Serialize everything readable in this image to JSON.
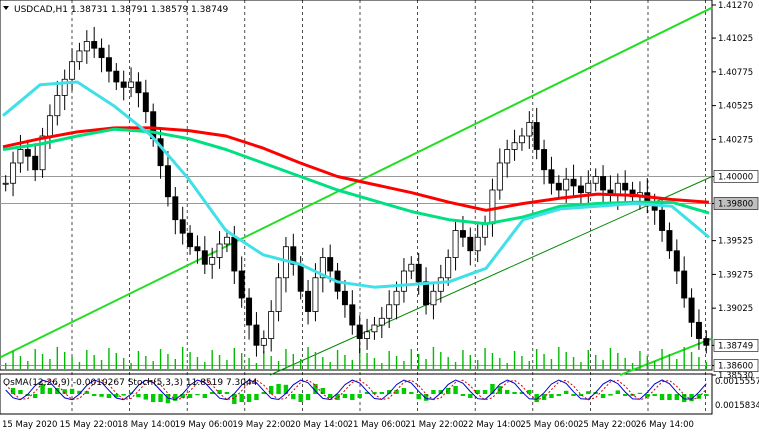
{
  "chart_data": {
    "type": "candlestick",
    "header": "USDCAD,H1  1.38731 1.38791 1.38579 1.38749",
    "price_ticks": [
      "1.41270",
      "1.41025",
      "1.40775",
      "1.40525",
      "1.40275",
      "1.40000",
      "1.39800",
      "1.39525",
      "1.39275",
      "1.39025",
      "1.38749",
      "1.38600",
      "1.38530"
    ],
    "price_range": [
      1.3853,
      1.4127
    ],
    "time_ticks": [
      "15 May 2020",
      "15 May 22:00",
      "18 May 14:00",
      "19 May 06:00",
      "19 May 22:00",
      "20 May 14:00",
      "21 May 06:00",
      "21 May 22:00",
      "22 May 14:00",
      "25 May 06:00",
      "25 May 22:00",
      "26 May 14:00"
    ],
    "highlight_levels": [
      {
        "label": "1.40000",
        "value": 1.4,
        "style": "white"
      },
      {
        "label": "1.39800",
        "value": 1.398,
        "style": "gray"
      },
      {
        "label": "1.38749",
        "value": 1.38749,
        "style": "current"
      },
      {
        "label": "1.38600",
        "value": 1.386,
        "style": "white"
      }
    ],
    "closes": [
      1.3995,
      1.401,
      1.402,
      1.4015,
      1.4005,
      1.403,
      1.4045,
      1.406,
      1.4072,
      1.4085,
      1.4093,
      1.41,
      1.4095,
      1.4088,
      1.4078,
      1.407,
      1.4066,
      1.407,
      1.4062,
      1.4048,
      1.4028,
      1.4008,
      1.3985,
      1.3968,
      1.3958,
      1.3948,
      1.3945,
      1.3935,
      1.394,
      1.395,
      1.3955,
      1.393,
      1.391,
      1.389,
      1.3875,
      1.388,
      1.39,
      1.3925,
      1.3948,
      1.3935,
      1.3915,
      1.39,
      1.3925,
      1.394,
      1.393,
      1.3915,
      1.3905,
      1.389,
      1.388,
      1.3885,
      1.389,
      1.3895,
      1.3905,
      1.3915,
      1.393,
      1.3935,
      1.3922,
      1.3905,
      1.3915,
      1.3925,
      1.394,
      1.396,
      1.3955,
      1.3945,
      1.3955,
      1.3965,
      1.399,
      1.401,
      1.402,
      1.4025,
      1.403,
      1.404,
      1.402,
      1.4005,
      1.3995,
      1.399,
      1.3998,
      1.3993,
      1.3988,
      1.3995,
      1.4,
      1.399,
      1.3986,
      1.3995,
      1.399,
      1.3985,
      1.3988,
      1.398,
      1.3975,
      1.396,
      1.3945,
      1.393,
      1.391,
      1.3892,
      1.388,
      1.3875
    ],
    "moving_averages": [
      {
        "color": "#ff0000",
        "values": [
          1.4022,
          1.4028,
          1.4033,
          1.4036,
          1.4036,
          1.4034,
          1.403,
          1.4021,
          1.401,
          1.4,
          1.3994,
          1.3988,
          1.3981,
          1.3975,
          1.398,
          1.3984,
          1.3987,
          1.3986,
          1.3983,
          1.3981
        ]
      },
      {
        "color": "#00e080",
        "values": [
          1.402,
          1.4024,
          1.403,
          1.4035,
          1.4033,
          1.4028,
          1.402,
          1.401,
          1.4,
          1.399,
          1.3982,
          1.3974,
          1.3968,
          1.3965,
          1.397,
          1.3978,
          1.398,
          1.3981,
          1.3981,
          1.3973
        ]
      },
      {
        "color": "#40e0e8",
        "values": [
          1.4045,
          1.4068,
          1.407,
          1.4052,
          1.403,
          1.3998,
          1.396,
          1.3942,
          1.3935,
          1.3922,
          1.3918,
          1.392,
          1.3922,
          1.3932,
          1.3968,
          1.3976,
          1.3978,
          1.398,
          1.3978,
          1.3955
        ]
      }
    ],
    "indicator": {
      "label": "OsMA(12,26,9) -0.0010267  Stoch(5,3,3) 11.8519 7.3044",
      "right_ticks": [
        "0.0015557",
        "0.0015834"
      ]
    }
  }
}
